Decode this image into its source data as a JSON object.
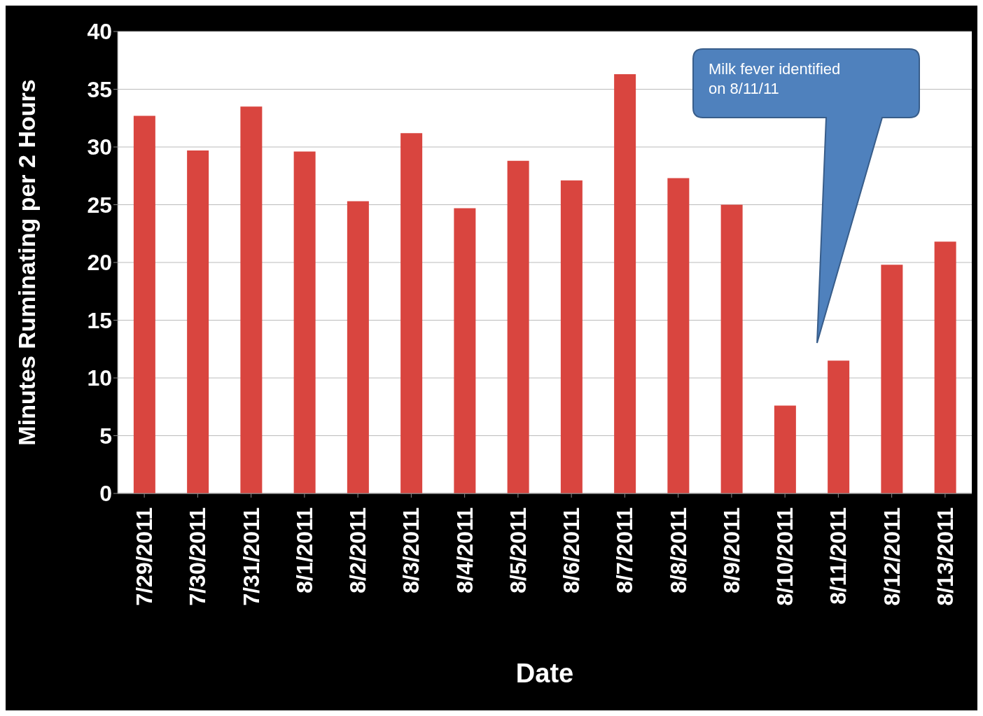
{
  "chart_data": {
    "type": "bar",
    "xlabel": "Date",
    "ylabel": "Minutes Ruminating per 2 Hours",
    "categories": [
      "7/29/2011",
      "7/30/2011",
      "7/31/2011",
      "8/1/2011",
      "8/2/2011",
      "8/3/2011",
      "8/4/2011",
      "8/5/2011",
      "8/6/2011",
      "8/7/2011",
      "8/8/2011",
      "8/9/2011",
      "8/10/2011",
      "8/11/2011",
      "8/12/2011",
      "8/13/2011"
    ],
    "values": [
      32.7,
      29.7,
      33.5,
      29.6,
      25.3,
      31.2,
      24.7,
      28.8,
      27.1,
      36.3,
      27.3,
      25.0,
      7.6,
      11.5,
      19.8,
      21.8
    ],
    "color": "#d9453f",
    "ylim": [
      0,
      40
    ],
    "yticks": [
      0,
      5,
      10,
      15,
      20,
      25,
      30,
      35,
      40
    ],
    "grid": "y",
    "annotations": [
      "Milk fever identified on 8/11/11"
    ]
  }
}
